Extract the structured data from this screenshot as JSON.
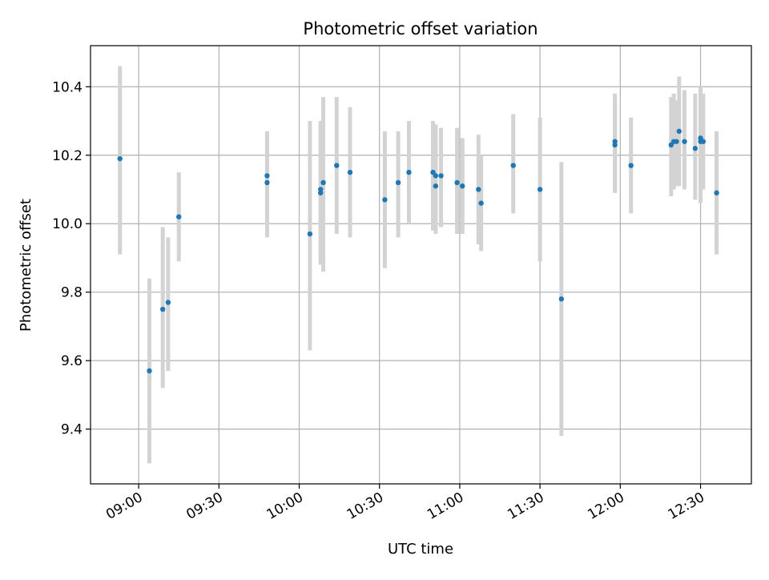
{
  "chart_data": {
    "type": "scatter",
    "title": "Photometric offset variation",
    "xlabel": "UTC time",
    "ylabel": "Photometric offset",
    "x_tick_labels": [
      "09:00",
      "09:30",
      "10:00",
      "10:30",
      "11:00",
      "11:30",
      "12:00",
      "12:30"
    ],
    "y_tick_labels": [
      "9.4",
      "9.6",
      "9.8",
      "10.0",
      "10.2",
      "10.4"
    ],
    "xlim": [
      "08:42",
      "12:49"
    ],
    "ylim": [
      9.24,
      10.52
    ],
    "grid": true,
    "colors": {
      "point": "#1f77b4",
      "errorbar": "#d3d3d3",
      "grid": "#b0b0b0"
    },
    "series": [
      {
        "points": [
          {
            "x": "08:53",
            "y": 10.19,
            "lo": 9.91,
            "hi": 10.46
          },
          {
            "x": "09:04",
            "y": 9.57,
            "lo": 9.3,
            "hi": 9.84
          },
          {
            "x": "09:09",
            "y": 9.75,
            "lo": 9.52,
            "hi": 9.99
          },
          {
            "x": "09:11",
            "y": 9.77,
            "lo": 9.57,
            "hi": 9.96
          },
          {
            "x": "09:15",
            "y": 10.02,
            "lo": 9.89,
            "hi": 10.15
          },
          {
            "x": "09:48",
            "y": 10.12,
            "lo": 9.96,
            "hi": 10.27
          },
          {
            "x": "09:48",
            "y": 10.14,
            "lo": 10.0,
            "hi": 10.27
          },
          {
            "x": "10:04",
            "y": 9.97,
            "lo": 9.63,
            "hi": 10.3
          },
          {
            "x": "10:08",
            "y": 10.1,
            "lo": 9.88,
            "hi": 10.29
          },
          {
            "x": "10:08",
            "y": 10.09,
            "lo": 9.89,
            "hi": 10.3
          },
          {
            "x": "10:09",
            "y": 10.12,
            "lo": 9.86,
            "hi": 10.37
          },
          {
            "x": "10:14",
            "y": 10.17,
            "lo": 9.97,
            "hi": 10.37
          },
          {
            "x": "10:19",
            "y": 10.15,
            "lo": 9.96,
            "hi": 10.34
          },
          {
            "x": "10:32",
            "y": 10.07,
            "lo": 9.87,
            "hi": 10.27
          },
          {
            "x": "10:37",
            "y": 10.12,
            "lo": 9.96,
            "hi": 10.27
          },
          {
            "x": "10:41",
            "y": 10.15,
            "lo": 10.0,
            "hi": 10.3
          },
          {
            "x": "10:50",
            "y": 10.15,
            "lo": 9.98,
            "hi": 10.3
          },
          {
            "x": "10:51",
            "y": 10.14,
            "lo": 9.98,
            "hi": 10.29
          },
          {
            "x": "10:51",
            "y": 10.11,
            "lo": 9.97,
            "hi": 10.25
          },
          {
            "x": "10:53",
            "y": 10.14,
            "lo": 9.99,
            "hi": 10.28
          },
          {
            "x": "10:59",
            "y": 10.12,
            "lo": 9.97,
            "hi": 10.28
          },
          {
            "x": "11:01",
            "y": 10.11,
            "lo": 9.97,
            "hi": 10.25
          },
          {
            "x": "11:07",
            "y": 10.1,
            "lo": 9.94,
            "hi": 10.26
          },
          {
            "x": "11:08",
            "y": 10.06,
            "lo": 9.92,
            "hi": 10.2
          },
          {
            "x": "11:20",
            "y": 10.17,
            "lo": 10.03,
            "hi": 10.32
          },
          {
            "x": "11:30",
            "y": 10.1,
            "lo": 9.89,
            "hi": 10.31
          },
          {
            "x": "11:38",
            "y": 9.78,
            "lo": 9.38,
            "hi": 10.18
          },
          {
            "x": "11:58",
            "y": 10.23,
            "lo": 10.09,
            "hi": 10.36
          },
          {
            "x": "11:58",
            "y": 10.24,
            "lo": 10.09,
            "hi": 10.38
          },
          {
            "x": "12:04",
            "y": 10.17,
            "lo": 10.03,
            "hi": 10.31
          },
          {
            "x": "12:19",
            "y": 10.23,
            "lo": 10.08,
            "hi": 10.37
          },
          {
            "x": "12:20",
            "y": 10.24,
            "lo": 10.1,
            "hi": 10.38
          },
          {
            "x": "12:21",
            "y": 10.24,
            "lo": 10.11,
            "hi": 10.36
          },
          {
            "x": "12:22",
            "y": 10.27,
            "lo": 10.11,
            "hi": 10.43
          },
          {
            "x": "12:24",
            "y": 10.24,
            "lo": 10.1,
            "hi": 10.39
          },
          {
            "x": "12:28",
            "y": 10.22,
            "lo": 10.07,
            "hi": 10.38
          },
          {
            "x": "12:30",
            "y": 10.24,
            "lo": 10.08,
            "hi": 10.4
          },
          {
            "x": "12:30",
            "y": 10.25,
            "lo": 10.06,
            "hi": 10.4
          },
          {
            "x": "12:31",
            "y": 10.24,
            "lo": 10.1,
            "hi": 10.38
          },
          {
            "x": "12:36",
            "y": 10.09,
            "lo": 9.91,
            "hi": 10.27
          }
        ]
      }
    ]
  }
}
